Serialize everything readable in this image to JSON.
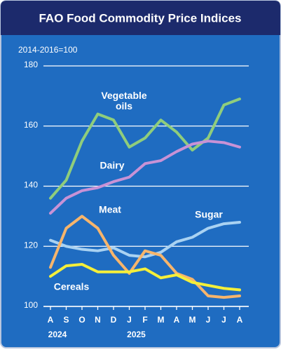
{
  "chart_data": {
    "type": "line",
    "title": "FAO Food Commodity Price Indices",
    "subtitle": "2014-2016=100",
    "categories": [
      "A",
      "S",
      "O",
      "N",
      "D",
      "J",
      "F",
      "M",
      "A",
      "M",
      "J",
      "J",
      "A"
    ],
    "years": [
      "2024",
      "2025"
    ],
    "ylim": [
      100,
      180
    ],
    "yticks": [
      100,
      120,
      140,
      160,
      180
    ],
    "grid": true,
    "series": [
      {
        "name": "Vegetable oils",
        "color": "#8fcd7c",
        "values": [
          136,
          142,
          155,
          164,
          162,
          153,
          156,
          162,
          158,
          152,
          156,
          167,
          169
        ]
      },
      {
        "name": "Dairy",
        "color": "#c892d6",
        "values": [
          131,
          136,
          138.5,
          139.5,
          141.5,
          143,
          147.5,
          148.5,
          151.5,
          154,
          155,
          154.5,
          153
        ]
      },
      {
        "name": "Meat",
        "color": "#a9d2f2",
        "values": [
          122,
          120,
          119,
          118.5,
          119.5,
          117,
          116.5,
          118,
          121.5,
          123,
          126,
          127.5,
          128
        ]
      },
      {
        "name": "Sugar",
        "color": "#f6b56c",
        "values": [
          113,
          126,
          130,
          126,
          117,
          111,
          118.5,
          117,
          111,
          109,
          103.5,
          103,
          103.5
        ]
      },
      {
        "name": "Cereals",
        "color": "#f4ef3a",
        "values": [
          110,
          113.5,
          114,
          111.5,
          111.5,
          111.5,
          112.5,
          109.5,
          110.5,
          108,
          107,
          106,
          105.5
        ]
      }
    ]
  }
}
